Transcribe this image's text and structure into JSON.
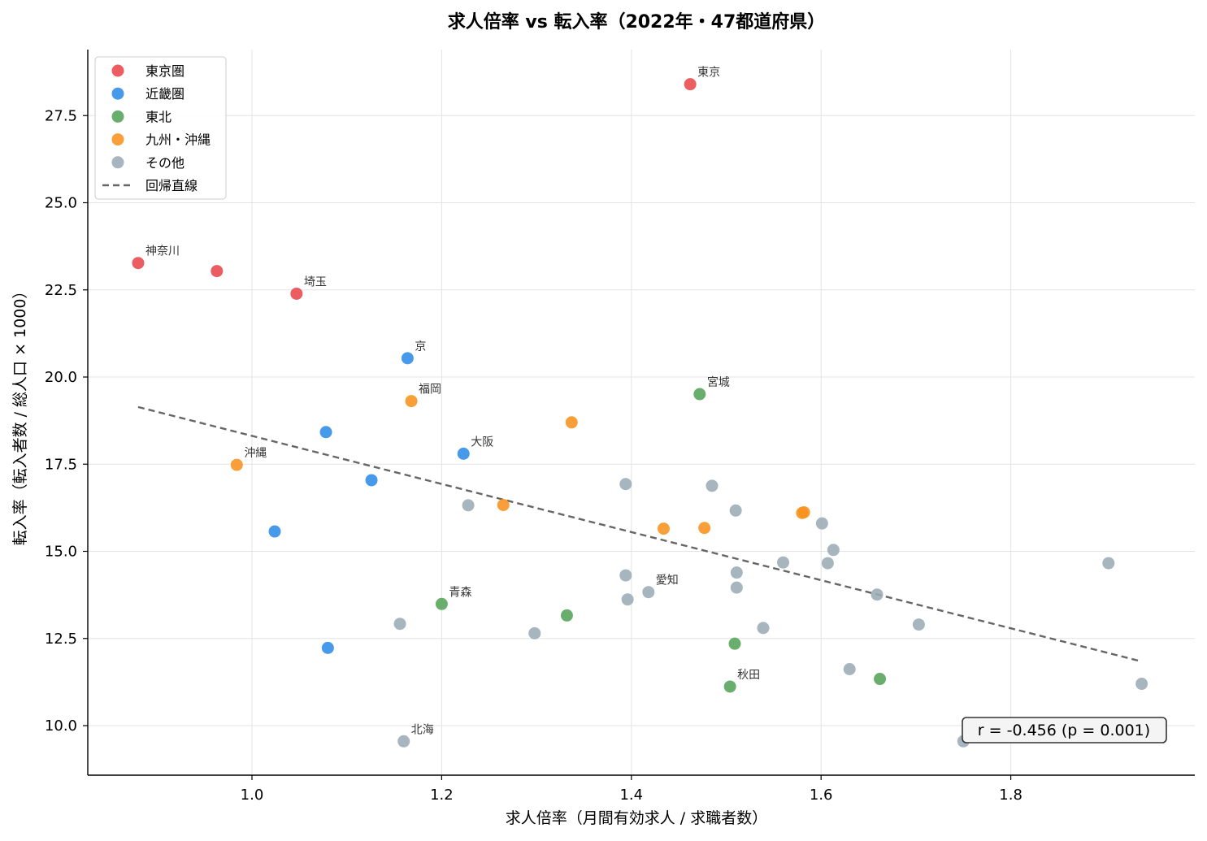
{
  "chart_data": {
    "type": "scatter",
    "title": "求人倍率 vs 転入率（2022年・47都道府県）",
    "xlabel": "求人倍率（月間有効求人 / 求職者数）",
    "ylabel": "転入率（転入者数 / 総人口 × 1000）",
    "xlim": [
      0.83,
      1.98
    ],
    "ylim": [
      8.6,
      29.4
    ],
    "xticks": [
      1.0,
      1.2,
      1.4,
      1.6,
      1.8
    ],
    "xtick_labels": [
      "1.0",
      "1.2",
      "1.4",
      "1.6",
      "1.8"
    ],
    "yticks": [
      10.0,
      12.5,
      15.0,
      17.5,
      20.0,
      22.5,
      25.0,
      27.5
    ],
    "ytick_labels": [
      "10.0",
      "12.5",
      "15.0",
      "17.5",
      "20.0",
      "22.5",
      "25.0",
      "27.5"
    ],
    "grid": true,
    "legend_position": "top-left",
    "series": [
      {
        "name": "東京圏",
        "color": "#e8474a",
        "points": [
          {
            "x": 1.462,
            "y": 28.4,
            "label": "東京"
          },
          {
            "x": 0.88,
            "y": 23.27,
            "label": "神奈川"
          },
          {
            "x": 0.963,
            "y": 23.04
          },
          {
            "x": 1.047,
            "y": 22.39,
            "label": "埼玉"
          }
        ]
      },
      {
        "name": "近畿圏",
        "color": "#2e8ce6",
        "points": [
          {
            "x": 1.164,
            "y": 20.54,
            "label": "京"
          },
          {
            "x": 1.223,
            "y": 17.8,
            "label": "大阪"
          },
          {
            "x": 1.078,
            "y": 18.42
          },
          {
            "x": 1.126,
            "y": 17.04
          },
          {
            "x": 1.024,
            "y": 15.57
          },
          {
            "x": 1.08,
            "y": 12.23
          }
        ]
      },
      {
        "name": "東北",
        "color": "#55a35a",
        "points": [
          {
            "x": 1.472,
            "y": 19.51,
            "label": "宮城"
          },
          {
            "x": 1.2,
            "y": 13.49,
            "label": "青森"
          },
          {
            "x": 1.332,
            "y": 13.16
          },
          {
            "x": 1.509,
            "y": 12.35
          },
          {
            "x": 1.504,
            "y": 11.12,
            "label": "秋田"
          },
          {
            "x": 1.662,
            "y": 11.34
          }
        ]
      },
      {
        "name": "九州・沖縄",
        "color": "#f7921e",
        "points": [
          {
            "x": 1.168,
            "y": 19.31,
            "label": "福岡"
          },
          {
            "x": 0.984,
            "y": 17.48,
            "label": "沖縄"
          },
          {
            "x": 1.337,
            "y": 18.7
          },
          {
            "x": 1.265,
            "y": 16.33
          },
          {
            "x": 1.434,
            "y": 15.65
          },
          {
            "x": 1.477,
            "y": 15.67
          },
          {
            "x": 1.58,
            "y": 16.1
          },
          {
            "x": 1.582,
            "y": 16.12
          }
        ]
      },
      {
        "name": "その他",
        "color": "#9aabb5",
        "points": [
          {
            "x": 1.228,
            "y": 16.32
          },
          {
            "x": 1.394,
            "y": 16.93
          },
          {
            "x": 1.485,
            "y": 16.88
          },
          {
            "x": 1.51,
            "y": 16.17
          },
          {
            "x": 1.601,
            "y": 15.8
          },
          {
            "x": 1.613,
            "y": 15.04
          },
          {
            "x": 1.56,
            "y": 14.68
          },
          {
            "x": 1.607,
            "y": 14.66
          },
          {
            "x": 1.511,
            "y": 14.39
          },
          {
            "x": 1.511,
            "y": 13.96
          },
          {
            "x": 1.394,
            "y": 14.31
          },
          {
            "x": 1.396,
            "y": 13.62
          },
          {
            "x": 1.418,
            "y": 13.83,
            "label": "愛知"
          },
          {
            "x": 1.659,
            "y": 13.76
          },
          {
            "x": 1.156,
            "y": 12.92
          },
          {
            "x": 1.298,
            "y": 12.65
          },
          {
            "x": 1.539,
            "y": 12.8
          },
          {
            "x": 1.703,
            "y": 12.9
          },
          {
            "x": 1.63,
            "y": 11.62
          },
          {
            "x": 1.903,
            "y": 14.66
          },
          {
            "x": 1.938,
            "y": 11.2
          },
          {
            "x": 1.16,
            "y": 9.55,
            "label": "北海"
          },
          {
            "x": 1.75,
            "y": 9.55
          }
        ]
      }
    ],
    "regression": {
      "name": "回帰直線",
      "x": [
        0.88,
        1.938
      ],
      "y": [
        19.14,
        11.84
      ],
      "color": "#666666"
    },
    "annotation": "r = -0.456  (p = 0.001)"
  }
}
